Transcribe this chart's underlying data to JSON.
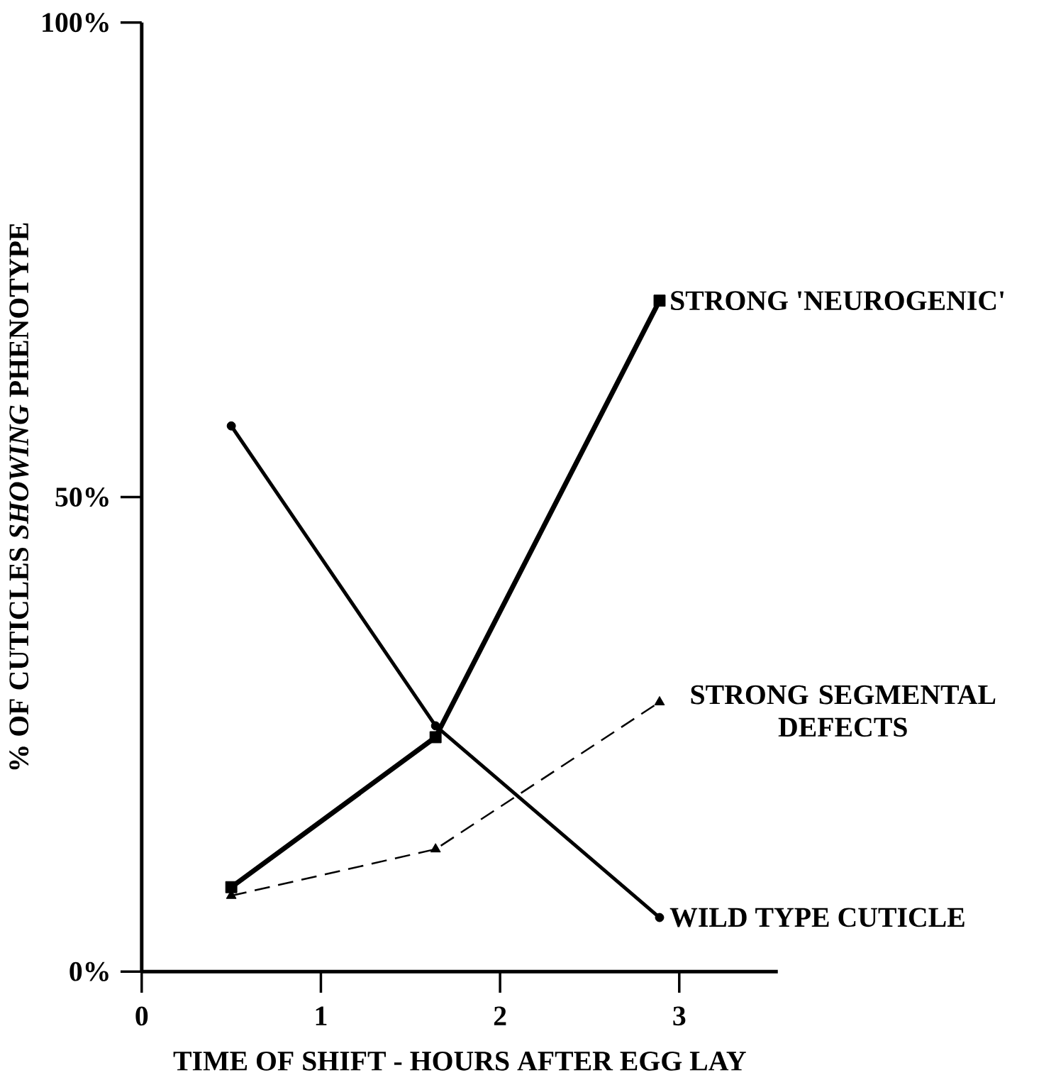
{
  "chart_data": {
    "type": "line",
    "xlabel": "TIME OF SHIFT - HOURS AFTER EGG LAY",
    "ylabel": "% OF CUTICLES *SHOWING* PHENOTYPE",
    "x": [
      0.5,
      1.64,
      2.89
    ],
    "series": [
      {
        "name": "STRONG 'NEUROGENIC'",
        "color": "#000000",
        "marker": "square",
        "line_style": "solid",
        "values": [
          8.9,
          24.7,
          70.7
        ]
      },
      {
        "name": "WILD TYPE CUTICLE",
        "color": "#000000",
        "marker": "circle",
        "line_style": "solid",
        "values": [
          57.5,
          25.9,
          5.7
        ]
      },
      {
        "name": "STRONG SEGMENTAL DEFECTS",
        "color": "#000000",
        "marker": "triangle",
        "line_style": "dashed",
        "values": [
          8.0,
          12.9,
          28.4
        ]
      }
    ],
    "xlim": [
      0,
      3.55
    ],
    "ylim": [
      0,
      100
    ],
    "xticks": [
      0,
      1,
      2,
      3
    ],
    "yticks": [
      {
        "value": 0,
        "label": "0%"
      },
      {
        "value": 50,
        "label": "50%"
      },
      {
        "value": 100,
        "label": "100%"
      }
    ],
    "legend": false
  }
}
